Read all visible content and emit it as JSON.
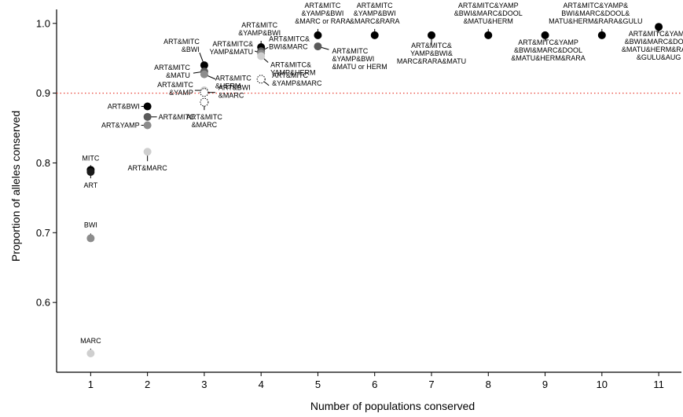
{
  "chart_data": {
    "type": "scatter",
    "title": "",
    "xlabel": "Number of populations conserved",
    "ylabel": "Proportion of alleles conserved",
    "xlim": [
      0.4,
      11.4
    ],
    "ylim": [
      0.5,
      1.02
    ],
    "x_ticks": [
      1,
      2,
      3,
      4,
      5,
      6,
      7,
      8,
      9,
      10,
      11
    ],
    "y_ticks": [
      0.6,
      0.7,
      0.8,
      0.9,
      1.0
    ],
    "x_tick_labels": [
      "1",
      "2",
      "3",
      "4",
      "5",
      "6",
      "7",
      "8",
      "9",
      "10",
      "11"
    ],
    "y_tick_labels": [
      "0.6",
      "0.7",
      "0.8",
      "0.9",
      "1.0"
    ],
    "reference_line": {
      "y": 0.9,
      "style": "dotted",
      "color": "#e8463b"
    },
    "grid": false,
    "legend": "none",
    "points": [
      {
        "x": 1,
        "y": 0.79,
        "fill": "#000000",
        "label": [
          "MITC"
        ]
      },
      {
        "x": 1,
        "y": 0.787,
        "fill": "#1a1a1a",
        "label": [
          "ART"
        ]
      },
      {
        "x": 1,
        "y": 0.692,
        "fill": "#8c8c8c",
        "label": [
          "BWI"
        ]
      },
      {
        "x": 1,
        "y": 0.527,
        "fill": "#cfcfcf",
        "label": [
          "MARC"
        ]
      },
      {
        "x": 2,
        "y": 0.881,
        "fill": "#000000",
        "label": [
          "ART&BWI"
        ]
      },
      {
        "x": 2,
        "y": 0.866,
        "fill": "#5a5a5a",
        "label": [
          "ART&MITC"
        ]
      },
      {
        "x": 2,
        "y": 0.854,
        "fill": "#8c8c8c",
        "label": [
          "ART&YAMP"
        ]
      },
      {
        "x": 2,
        "y": 0.816,
        "fill": "#cfcfcf",
        "label": [
          "ART&MARC"
        ]
      },
      {
        "x": 3,
        "y": 0.94,
        "fill": "#000000",
        "label": [
          "ART&MITC",
          "&BWI"
        ]
      },
      {
        "x": 3,
        "y": 0.931,
        "fill": "#5a5a5a",
        "label": [
          "ART&MITC",
          "&MATU"
        ]
      },
      {
        "x": 3,
        "y": 0.927,
        "fill": "#8c8c8c",
        "label": [
          "ART&MITC",
          "&HERM"
        ]
      },
      {
        "x": 3,
        "y": 0.904,
        "fill": "#cfcfcf",
        "label": [
          "ART&MITC",
          "&YAMP"
        ]
      },
      {
        "x": 3,
        "y": 0.901,
        "fill": "none",
        "label": [
          "ART&BWI",
          "&MARC"
        ]
      },
      {
        "x": 3,
        "y": 0.887,
        "fill": "none",
        "label": [
          "ART&MITC",
          "&MARC"
        ]
      },
      {
        "x": 4,
        "y": 0.966,
        "fill": "#000000",
        "label": [
          "ART&MITC",
          "&YAMP&BWI"
        ]
      },
      {
        "x": 4,
        "y": 0.96,
        "fill": "#5a5a5a",
        "label": [
          "ART&MITC&",
          "BWI&MARC"
        ]
      },
      {
        "x": 4,
        "y": 0.957,
        "fill": "#8c8c8c",
        "label": [
          "ART&MITC&",
          "YAMP&MATU"
        ]
      },
      {
        "x": 4,
        "y": 0.953,
        "fill": "#cfcfcf",
        "label": [
          "ART&MITC&",
          "YAMP&HERM"
        ]
      },
      {
        "x": 4,
        "y": 0.92,
        "fill": "none",
        "label": [
          "ART&MITC",
          "&YAMP&MARC"
        ]
      },
      {
        "x": 5,
        "y": 0.983,
        "fill": "#000000",
        "label": [
          "ART&MITC",
          "&YAMP&BWI",
          "&MARC or RARA"
        ]
      },
      {
        "x": 5,
        "y": 0.967,
        "fill": "#5a5a5a",
        "label": [
          "ART&MITC",
          "&YAMP&BWI",
          "&MATU or HERM"
        ]
      },
      {
        "x": 6,
        "y": 0.983,
        "fill": "#000000",
        "label": [
          "ART&MITC",
          "&YAMP&BWI",
          "&MARC&RARA"
        ]
      },
      {
        "x": 7,
        "y": 0.983,
        "fill": "#000000",
        "label": [
          "ART&MITC&",
          "YAMP&BWI&",
          "MARC&RARA&MATU"
        ]
      },
      {
        "x": 8,
        "y": 0.983,
        "fill": "#000000",
        "label": [
          "ART&MITC&YAMP",
          "&BWI&MARC&DOOL",
          "&MATU&HERM"
        ]
      },
      {
        "x": 9,
        "y": 0.983,
        "fill": "#000000",
        "label": [
          "ART&MITC&YAMP",
          "&BWI&MARC&DOOL",
          "&MATU&HERM&RARA"
        ]
      },
      {
        "x": 10,
        "y": 0.983,
        "fill": "#000000",
        "label": [
          "ART&MITC&YAMP&",
          "BWI&MARC&DOOL&",
          "MATU&HERM&RARA&GULU"
        ]
      },
      {
        "x": 11,
        "y": 0.995,
        "fill": "#000000",
        "label": [
          "ART&MITC&YAMP",
          "&BWI&MARC&DOOL",
          "&MATU&HERM&RARA",
          "&GULU&AUG"
        ]
      }
    ]
  }
}
